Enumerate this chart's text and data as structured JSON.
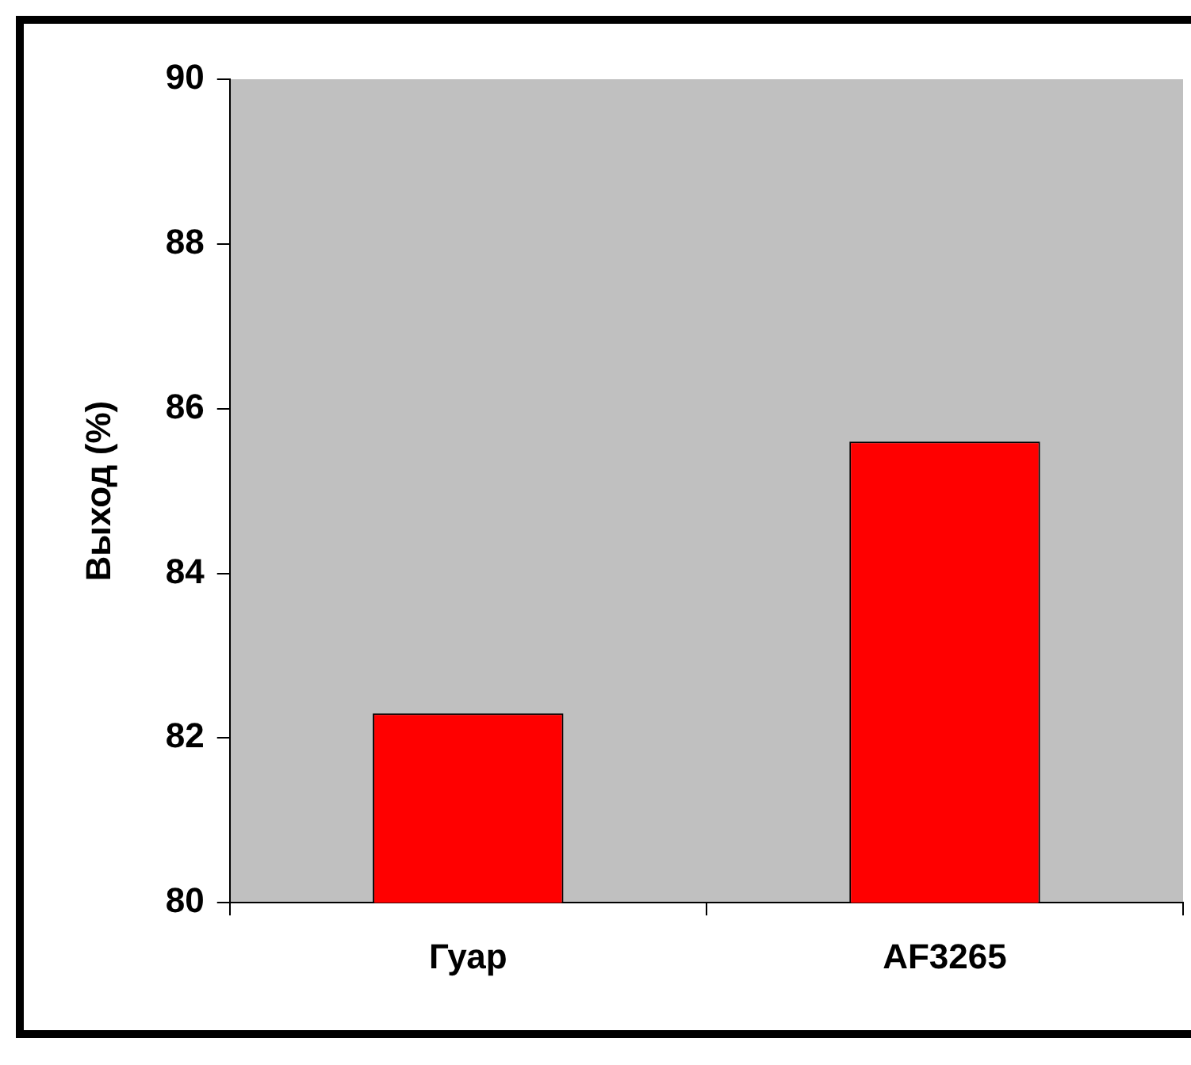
{
  "chart_data": {
    "type": "bar",
    "ylabel": "Выход (%)",
    "categories": [
      "Гуар",
      "AF3265"
    ],
    "values": [
      82.3,
      85.6
    ],
    "color": "#ff0000",
    "ylim": [
      80,
      90
    ],
    "yticks": [
      80,
      82,
      84,
      86,
      88,
      90
    ]
  }
}
